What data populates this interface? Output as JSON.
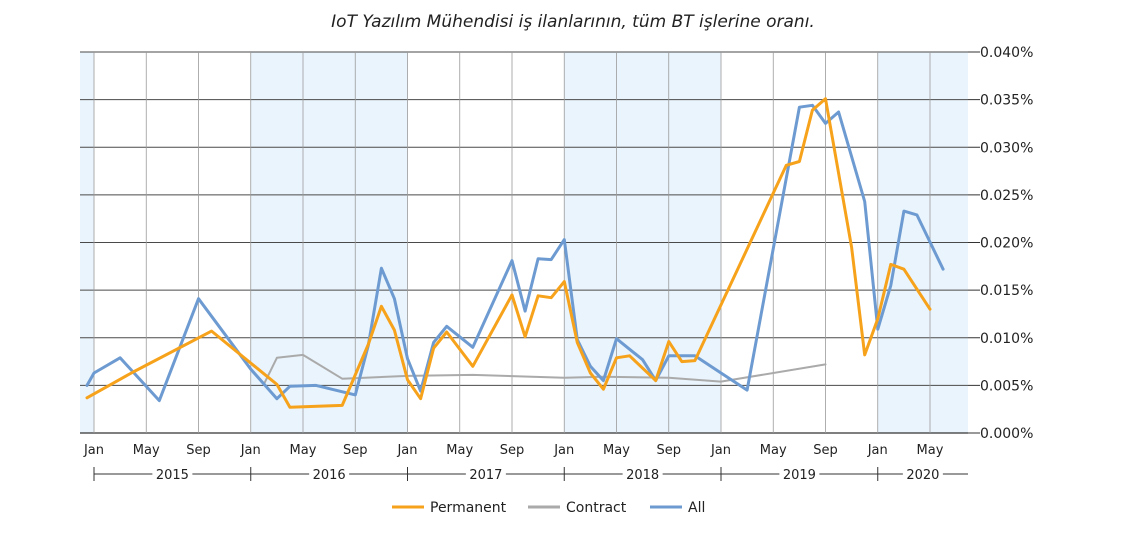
{
  "chart_data": {
    "type": "line",
    "title": "IoT Yazılım Mühendisi iş ilanlarının, tüm BT işlerine oranı.",
    "xlabel": "",
    "ylabel": "",
    "y_ticks": [
      "0.000%",
      "0.005%",
      "0.010%",
      "0.015%",
      "0.020%",
      "0.025%",
      "0.030%",
      "0.035%",
      "0.040%"
    ],
    "ylim": [
      0,
      0.04
    ],
    "x_month_labels": [
      "Jan",
      "May",
      "Sep"
    ],
    "x_year_labels": [
      "2015",
      "2016",
      "2017",
      "2018",
      "2019",
      "2020"
    ],
    "x_range": [
      "2015-01",
      "2020-07"
    ],
    "grid": true,
    "legend_position": "bottom",
    "series": [
      {
        "name": "Permanent",
        "color": "#f7a21b",
        "points": [
          [
            "2014-12-15",
            0.0037
          ],
          [
            "2015-04-01",
            0.0064
          ],
          [
            "2015-10-01",
            0.0107
          ],
          [
            "2016-03-01",
            0.0051
          ],
          [
            "2016-04-01",
            0.0027
          ],
          [
            "2016-08-01",
            0.0029
          ],
          [
            "2016-10-01",
            0.0093
          ],
          [
            "2016-11-01",
            0.0133
          ],
          [
            "2016-12-01",
            0.0108
          ],
          [
            "2017-01-01",
            0.0056
          ],
          [
            "2017-02-01",
            0.0036
          ],
          [
            "2017-03-01",
            0.0089
          ],
          [
            "2017-04-01",
            0.0106
          ],
          [
            "2017-06-01",
            0.007
          ],
          [
            "2017-09-01",
            0.0145
          ],
          [
            "2017-10-01",
            0.0101
          ],
          [
            "2017-11-01",
            0.0144
          ],
          [
            "2017-12-01",
            0.0142
          ],
          [
            "2018-01-01",
            0.0159
          ],
          [
            "2018-02-01",
            0.0095
          ],
          [
            "2018-03-01",
            0.0063
          ],
          [
            "2018-04-01",
            0.0046
          ],
          [
            "2018-05-01",
            0.0079
          ],
          [
            "2018-06-01",
            0.0081
          ],
          [
            "2018-08-01",
            0.0055
          ],
          [
            "2018-09-01",
            0.0096
          ],
          [
            "2018-10-01",
            0.0075
          ],
          [
            "2018-11-01",
            0.0076
          ],
          [
            "2019-06-01",
            0.0281
          ],
          [
            "2019-07-01",
            0.0285
          ],
          [
            "2019-08-01",
            0.0339
          ],
          [
            "2019-09-01",
            0.0351
          ],
          [
            "2019-11-01",
            0.0195
          ],
          [
            "2019-12-01",
            0.0082
          ],
          [
            "2020-01-01",
            0.012
          ],
          [
            "2020-02-01",
            0.0177
          ],
          [
            "2020-03-01",
            0.0172
          ],
          [
            "2020-05-01",
            0.013
          ]
        ]
      },
      {
        "name": "Contract",
        "color": "#aaaaaa",
        "points": [
          [
            "2016-02-01",
            0.0051
          ],
          [
            "2016-03-01",
            0.0079
          ],
          [
            "2016-05-01",
            0.0082
          ],
          [
            "2016-08-01",
            0.0057
          ],
          [
            "2017-01-01",
            0.006
          ],
          [
            "2017-06-01",
            0.0061
          ],
          [
            "2018-01-01",
            0.0058
          ],
          [
            "2018-04-01",
            0.0059
          ],
          [
            "2018-09-01",
            0.0058
          ],
          [
            "2019-01-01",
            0.0054
          ],
          [
            "2019-09-01",
            0.0072
          ]
        ]
      },
      {
        "name": "All",
        "color": "#6d9bd1",
        "points": [
          [
            "2014-12-15",
            0.005
          ],
          [
            "2015-01-01",
            0.0063
          ],
          [
            "2015-03-01",
            0.0079
          ],
          [
            "2015-06-01",
            0.0034
          ],
          [
            "2015-09-01",
            0.0141
          ],
          [
            "2016-01-01",
            0.0067
          ],
          [
            "2016-03-01",
            0.0036
          ],
          [
            "2016-04-01",
            0.0049
          ],
          [
            "2016-06-01",
            0.005
          ],
          [
            "2016-09-01",
            0.004
          ],
          [
            "2016-10-01",
            0.0092
          ],
          [
            "2016-11-01",
            0.0173
          ],
          [
            "2016-12-01",
            0.0141
          ],
          [
            "2017-01-01",
            0.0078
          ],
          [
            "2017-02-01",
            0.0044
          ],
          [
            "2017-03-01",
            0.0095
          ],
          [
            "2017-04-01",
            0.0112
          ],
          [
            "2017-06-01",
            0.009
          ],
          [
            "2017-09-01",
            0.0181
          ],
          [
            "2017-10-01",
            0.0128
          ],
          [
            "2017-11-01",
            0.0183
          ],
          [
            "2017-12-01",
            0.0182
          ],
          [
            "2018-01-01",
            0.0203
          ],
          [
            "2018-02-01",
            0.0098
          ],
          [
            "2018-03-01",
            0.007
          ],
          [
            "2018-04-01",
            0.0055
          ],
          [
            "2018-05-01",
            0.0099
          ],
          [
            "2018-07-01",
            0.0077
          ],
          [
            "2018-08-01",
            0.0055
          ],
          [
            "2018-09-01",
            0.0081
          ],
          [
            "2018-11-01",
            0.0081
          ],
          [
            "2019-01-01",
            0.0063
          ],
          [
            "2019-03-01",
            0.0045
          ],
          [
            "2019-07-01",
            0.0342
          ],
          [
            "2019-08-01",
            0.0344
          ],
          [
            "2019-09-01",
            0.0325
          ],
          [
            "2019-10-01",
            0.0337
          ],
          [
            "2019-12-01",
            0.0243
          ],
          [
            "2020-01-01",
            0.0109
          ],
          [
            "2020-02-01",
            0.0155
          ],
          [
            "2020-03-01",
            0.0233
          ],
          [
            "2020-04-01",
            0.0229
          ],
          [
            "2020-06-01",
            0.0172
          ]
        ]
      }
    ]
  }
}
